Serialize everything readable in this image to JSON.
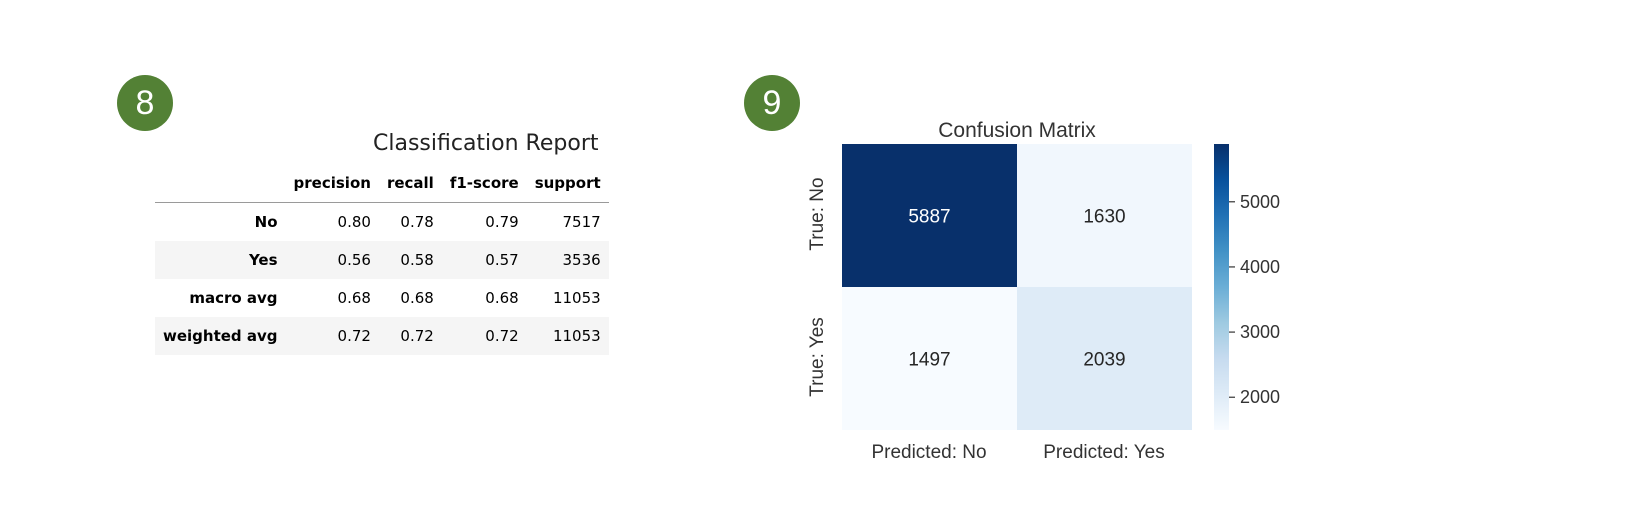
{
  "badges": {
    "report": "8",
    "matrix": "9"
  },
  "report": {
    "title": "Classification Report",
    "columns": [
      "",
      "precision",
      "recall",
      "f1-score",
      "support"
    ],
    "rows": [
      {
        "label": "No",
        "precision": "0.80",
        "recall": "0.78",
        "f1": "0.79",
        "support": "7517"
      },
      {
        "label": "Yes",
        "precision": "0.56",
        "recall": "0.58",
        "f1": "0.57",
        "support": "3536"
      },
      {
        "label": "macro avg",
        "precision": "0.68",
        "recall": "0.68",
        "f1": "0.68",
        "support": "11053"
      },
      {
        "label": "weighted avg",
        "precision": "0.72",
        "recall": "0.72",
        "f1": "0.72",
        "support": "11053"
      }
    ]
  },
  "chart_data": {
    "type": "heatmap",
    "title": "Confusion Matrix",
    "x_categories": [
      "Predicted: No",
      "Predicted: Yes"
    ],
    "y_categories": [
      "True: No",
      "True: Yes"
    ],
    "values": [
      [
        5887,
        1630
      ],
      [
        1497,
        2039
      ]
    ],
    "colormap": "Blues",
    "colorbar": {
      "range": [
        1497,
        5887
      ],
      "ticks": [
        2000,
        3000,
        4000,
        5000
      ]
    },
    "colors": {
      "low": "#f7fbff",
      "high": "#08306b"
    }
  }
}
